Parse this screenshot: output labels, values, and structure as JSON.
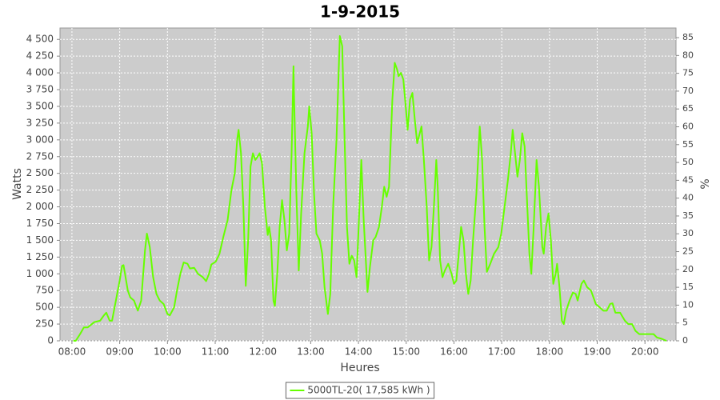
{
  "chart_data": {
    "type": "line",
    "title": "1-9-2015",
    "x_label": "Heures",
    "y_label": "Watts",
    "y2_label": "%",
    "xlim": [
      7.75,
      20.65
    ],
    "xticks": [
      {
        "value": 8,
        "label": "08:00"
      },
      {
        "value": 9,
        "label": "09:00"
      },
      {
        "value": 10,
        "label": "10:00"
      },
      {
        "value": 11,
        "label": "11:00"
      },
      {
        "value": 12,
        "label": "12:00"
      },
      {
        "value": 13,
        "label": "13:00"
      },
      {
        "value": 14,
        "label": "14:00"
      },
      {
        "value": 15,
        "label": "15:00"
      },
      {
        "value": 16,
        "label": "16:00"
      },
      {
        "value": 17,
        "label": "17:00"
      },
      {
        "value": 18,
        "label": "18:00"
      },
      {
        "value": 19,
        "label": "19:00"
      },
      {
        "value": 20,
        "label": "20:00"
      }
    ],
    "ylim": [
      0,
      4670
    ],
    "yticks": [
      0,
      250,
      500,
      750,
      {
        "value": 1000,
        "label": "1 000"
      },
      {
        "value": 1250,
        "label": "1 250"
      },
      {
        "value": 1500,
        "label": "1 500"
      },
      {
        "value": 1750,
        "label": "1 750"
      },
      {
        "value": 2000,
        "label": "2 000"
      },
      {
        "value": 2250,
        "label": "2 250"
      },
      {
        "value": 2500,
        "label": "2 500"
      },
      {
        "value": 2750,
        "label": "2 750"
      },
      {
        "value": 3000,
        "label": "3 000"
      },
      {
        "value": 3250,
        "label": "3 250"
      },
      {
        "value": 3500,
        "label": "3 500"
      },
      {
        "value": 3750,
        "label": "3 750"
      },
      {
        "value": 4000,
        "label": "4 000"
      },
      {
        "value": 4250,
        "label": "4 250"
      },
      {
        "value": 4500,
        "label": "4 500"
      }
    ],
    "y2lim": [
      0,
      87.7
    ],
    "y2ticks": [
      0,
      5,
      10,
      15,
      20,
      25,
      30,
      35,
      40,
      45,
      50,
      55,
      60,
      65,
      70,
      75,
      80,
      85
    ],
    "grid": true,
    "x": [
      8.03,
      8.08,
      8.17,
      8.25,
      8.33,
      8.47,
      8.59,
      8.67,
      8.72,
      8.79,
      8.84,
      8.92,
      9.0,
      9.05,
      9.08,
      9.17,
      9.22,
      9.3,
      9.38,
      9.45,
      9.53,
      9.57,
      9.63,
      9.7,
      9.77,
      9.84,
      9.92,
      10.0,
      10.05,
      10.14,
      10.2,
      10.27,
      10.34,
      10.42,
      10.47,
      10.56,
      10.64,
      10.74,
      10.81,
      10.87,
      10.92,
      11.01,
      11.09,
      11.17,
      11.26,
      11.34,
      11.41,
      11.46,
      11.49,
      11.54,
      11.59,
      11.64,
      11.69,
      11.74,
      11.79,
      11.84,
      11.89,
      11.93,
      11.98,
      12.04,
      12.1,
      12.13,
      12.17,
      12.22,
      12.25,
      12.3,
      12.35,
      12.4,
      12.45,
      12.5,
      12.55,
      12.6,
      12.64,
      12.65,
      12.7,
      12.75,
      12.8,
      12.87,
      12.94,
      12.97,
      13.02,
      13.07,
      13.12,
      13.19,
      13.24,
      13.29,
      13.36,
      13.41,
      13.47,
      13.54,
      13.61,
      13.66,
      13.71,
      13.76,
      13.81,
      13.86,
      13.91,
      13.96,
      14.01,
      14.06,
      14.11,
      14.19,
      14.24,
      14.31,
      14.36,
      14.43,
      14.49,
      14.54,
      14.59,
      14.64,
      14.71,
      14.76,
      14.81,
      14.84,
      14.89,
      14.94,
      14.99,
      15.03,
      15.08,
      15.13,
      15.18,
      15.23,
      15.32,
      15.37,
      15.43,
      15.48,
      15.53,
      15.58,
      15.63,
      15.66,
      15.71,
      15.76,
      15.81,
      15.88,
      15.95,
      16.0,
      16.05,
      16.1,
      16.15,
      16.2,
      16.25,
      16.3,
      16.35,
      16.4,
      16.47,
      16.54,
      16.59,
      16.64,
      16.69,
      16.76,
      16.84,
      16.93,
      16.99,
      17.06,
      17.13,
      17.19,
      17.23,
      17.28,
      17.33,
      17.38,
      17.43,
      17.48,
      17.53,
      17.58,
      17.62,
      17.67,
      17.73,
      17.78,
      17.85,
      17.88,
      17.93,
      17.98,
      18.03,
      18.08,
      18.13,
      18.16,
      18.21,
      18.26,
      18.3,
      18.35,
      18.42,
      18.49,
      18.55,
      18.59,
      18.67,
      18.72,
      18.79,
      18.87,
      18.97,
      19.05,
      19.13,
      19.2,
      19.27,
      19.32,
      19.38,
      19.48,
      19.58,
      19.65,
      19.73,
      19.8,
      19.88,
      19.98,
      20.1,
      20.18,
      20.25,
      20.35,
      20.45
    ],
    "series": [
      {
        "name": "5000TL-20( 17,585 kWh )",
        "color": "#66ff00",
        "values": [
          0,
          0,
          100,
          200,
          200,
          280,
          300,
          380,
          420,
          300,
          300,
          600,
          900,
          1120,
          1130,
          750,
          650,
          600,
          450,
          600,
          1350,
          1600,
          1400,
          950,
          700,
          600,
          550,
          400,
          380,
          500,
          750,
          1000,
          1170,
          1150,
          1080,
          1090,
          1000,
          950,
          890,
          1000,
          1140,
          1180,
          1300,
          1550,
          1800,
          2250,
          2500,
          3000,
          3150,
          2800,
          2000,
          820,
          1500,
          2600,
          2800,
          2700,
          2750,
          2800,
          2650,
          2000,
          1580,
          1700,
          1500,
          600,
          520,
          1000,
          1700,
          2100,
          1800,
          1350,
          1600,
          2800,
          4100,
          3700,
          2200,
          1050,
          1900,
          2800,
          3200,
          3500,
          3100,
          2200,
          1600,
          1500,
          1300,
          800,
          400,
          700,
          2000,
          3000,
          4550,
          4400,
          3000,
          1700,
          1150,
          1270,
          1200,
          950,
          1800,
          2700,
          1800,
          730,
          1100,
          1500,
          1550,
          1700,
          2000,
          2300,
          2150,
          2300,
          3600,
          4150,
          4050,
          3950,
          4000,
          3900,
          3500,
          3150,
          3600,
          3700,
          3300,
          2950,
          3200,
          2700,
          2000,
          1200,
          1400,
          2000,
          2700,
          2300,
          1200,
          950,
          1050,
          1150,
          1000,
          850,
          900,
          1300,
          1700,
          1500,
          1000,
          700,
          900,
          1500,
          2200,
          3200,
          2700,
          1700,
          1030,
          1150,
          1300,
          1400,
          1600,
          2000,
          2400,
          2800,
          3150,
          2800,
          2450,
          2700,
          3100,
          2900,
          2100,
          1300,
          1000,
          1700,
          2700,
          2300,
          1400,
          1300,
          1700,
          1900,
          1500,
          850,
          1000,
          1150,
          800,
          300,
          250,
          450,
          600,
          720,
          700,
          600,
          850,
          900,
          800,
          750,
          550,
          500,
          450,
          450,
          550,
          560,
          420,
          420,
          300,
          250,
          250,
          150,
          100,
          100,
          100,
          100,
          50,
          30,
          0
        ]
      }
    ]
  }
}
